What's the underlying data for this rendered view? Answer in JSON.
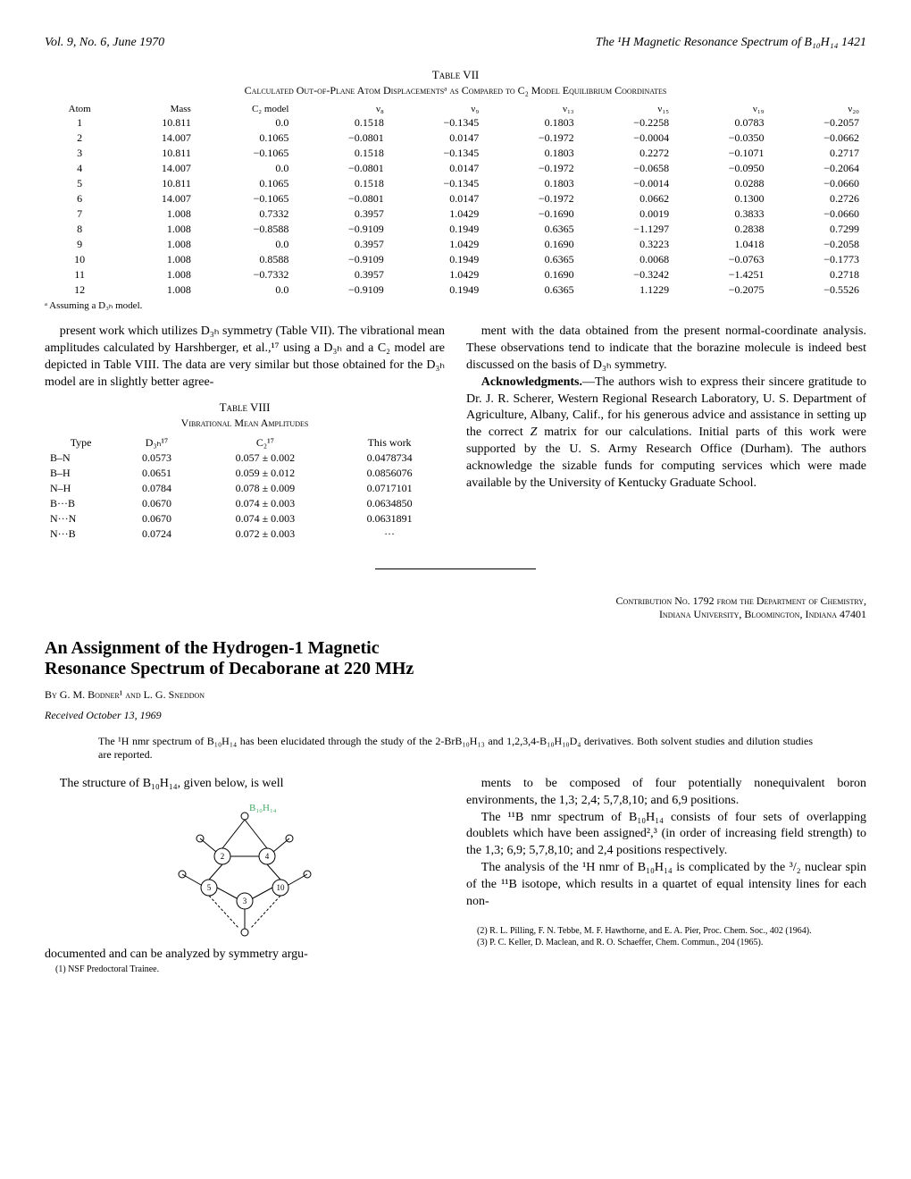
{
  "header": {
    "left": "Vol. 9, No. 6, June 1970",
    "right": "The ¹H Magnetic Resonance Spectrum of B₁₀H₁₄   1421"
  },
  "table7": {
    "label": "Table VII",
    "subtitle": "Calculated Out-of-Plane Atom Displacementsᵃ as Compared to C₂ Model Equilibrium Coordinates",
    "columns": [
      "Atom",
      "Mass",
      "C₂ model",
      "ν₈",
      "ν₉",
      "ν₁₃",
      "ν₁₅",
      "ν₁₉",
      "ν₂₀"
    ],
    "rows": [
      [
        "1",
        "10.811",
        "0.0",
        "0.1518",
        "−0.1345",
        "0.1803",
        "−0.2258",
        "0.0783",
        "−0.2057"
      ],
      [
        "2",
        "14.007",
        "0.1065",
        "−0.0801",
        "0.0147",
        "−0.1972",
        "−0.0004",
        "−0.0350",
        "−0.0662"
      ],
      [
        "3",
        "10.811",
        "−0.1065",
        "0.1518",
        "−0.1345",
        "0.1803",
        "0.2272",
        "−0.1071",
        "0.2717"
      ],
      [
        "4",
        "14.007",
        "0.0",
        "−0.0801",
        "0.0147",
        "−0.1972",
        "−0.0658",
        "−0.0950",
        "−0.2064"
      ],
      [
        "5",
        "10.811",
        "0.1065",
        "0.1518",
        "−0.1345",
        "0.1803",
        "−0.0014",
        "0.0288",
        "−0.0660"
      ],
      [
        "6",
        "14.007",
        "−0.1065",
        "−0.0801",
        "0.0147",
        "−0.1972",
        "0.0662",
        "0.1300",
        "0.2726"
      ],
      [
        "7",
        "1.008",
        "0.7332",
        "0.3957",
        "1.0429",
        "−0.1690",
        "0.0019",
        "0.3833",
        "−0.0660"
      ],
      [
        "8",
        "1.008",
        "−0.8588",
        "−0.9109",
        "0.1949",
        "0.6365",
        "−1.1297",
        "0.2838",
        "0.7299"
      ],
      [
        "9",
        "1.008",
        "0.0",
        "0.3957",
        "1.0429",
        "0.1690",
        "0.3223",
        "1.0418",
        "−0.2058"
      ],
      [
        "10",
        "1.008",
        "0.8588",
        "−0.9109",
        "0.1949",
        "0.6365",
        "0.0068",
        "−0.0763",
        "−0.1773"
      ],
      [
        "11",
        "1.008",
        "−0.7332",
        "0.3957",
        "1.0429",
        "0.1690",
        "−0.3242",
        "−1.4251",
        "0.2718"
      ],
      [
        "12",
        "1.008",
        "0.0",
        "−0.9109",
        "0.1949",
        "0.6365",
        "1.1229",
        "−0.2075",
        "−0.5526"
      ]
    ],
    "footnote": "ᵃ Assuming a D₃ₕ model."
  },
  "body1": {
    "p1": "present work which utilizes D₃ₕ symmetry (Table VII). The vibrational mean amplitudes calculated by Harshberger, et al.,¹⁷ using a D₃ₕ and a C₂ model are depicted in Table VIII. The data are very similar but those obtained for the D₃ₕ model are in slightly better agree-"
  },
  "table8": {
    "label": "Table VIII",
    "subtitle": "Vibrational Mean Amplitudes",
    "columns": [
      "Type",
      "D₃ₕ¹⁷",
      "C₂¹⁷",
      "This work"
    ],
    "rows": [
      [
        "B–N",
        "0.0573",
        "0.057 ± 0.002",
        "0.0478734"
      ],
      [
        "B–H",
        "0.0651",
        "0.059 ± 0.012",
        "0.0856076"
      ],
      [
        "N–H",
        "0.0784",
        "0.078 ± 0.009",
        "0.0717101"
      ],
      [
        "B···B",
        "0.0670",
        "0.074 ± 0.003",
        "0.0634850"
      ],
      [
        "N···N",
        "0.0670",
        "0.074 ± 0.003",
        "0.0631891"
      ],
      [
        "N···B",
        "0.0724",
        "0.072 ± 0.003",
        "···"
      ]
    ]
  },
  "body2": {
    "p1": "ment with the data obtained from the present normal-coordinate analysis. These observations tend to indicate that the borazine molecule is indeed best discussed on the basis of D₃ₕ symmetry.",
    "p2": "Acknowledgments.—The authors wish to express their sincere gratitude to Dr. J. R. Scherer, Western Regional Research Laboratory, U. S. Department of Agriculture, Albany, Calif., for his generous advice and assistance in setting up the correct Z matrix for our calculations. Initial parts of this work were supported by the U. S. Army Research Office (Durham). The authors acknowledge the sizable funds for computing services which were made available by the University of Kentucky Graduate School."
  },
  "contribution": {
    "line1": "Contribution No. 1792 from the Department of Chemistry,",
    "line2": "Indiana University, Bloomington, Indiana   47401"
  },
  "article": {
    "title1": "An Assignment of the Hydrogen-1 Magnetic",
    "title2": "Resonance Spectrum of Decaborane at 220 MHz",
    "by": "By G. M. Bodner¹ and L. G. Sneddon",
    "received": "Received October 13, 1969",
    "abstract": "The ¹H nmr spectrum of B₁₀H₁₄ has been elucidated through the study of the 2-BrB₁₀H₁₃ and 1,2,3,4-B₁₀H₁₀D₄ derivatives. Both solvent studies and dilution studies are reported."
  },
  "body3": {
    "p1": "The structure of B₁₀H₁₄, given below, is well",
    "structure_label": "B₁₀H₁₄",
    "p2": "documented and can be analyzed by symmetry argu-",
    "p3": "ments to be composed of four potentially nonequivalent boron environments, the 1,3; 2,4; 5,7,8,10; and 6,9 positions.",
    "p4": "The ¹¹B nmr spectrum of B₁₀H₁₄ consists of four sets of overlapping doublets which have been assigned²,³ (in order of increasing field strength) to the 1,3; 6,9; 5,7,8,10; and 2,4 positions respectively.",
    "p5": "The analysis of the ¹H nmr of B₁₀H₁₄ is complicated by the ³/₂ nuclear spin of the ¹¹B isotope, which results in a quartet of equal intensity lines for each non-"
  },
  "refs": {
    "r1": "(1) NSF Predoctoral Trainee.",
    "r2": "(2) R. L. Pilling, F. N. Tebbe, M. F. Hawthorne, and E. A. Pier, Proc. Chem. Soc., 402 (1964).",
    "r3": "(3) P. C. Keller, D. Maclean, and R. O. Schaeffer, Chem. Commun., 204 (1965)."
  }
}
